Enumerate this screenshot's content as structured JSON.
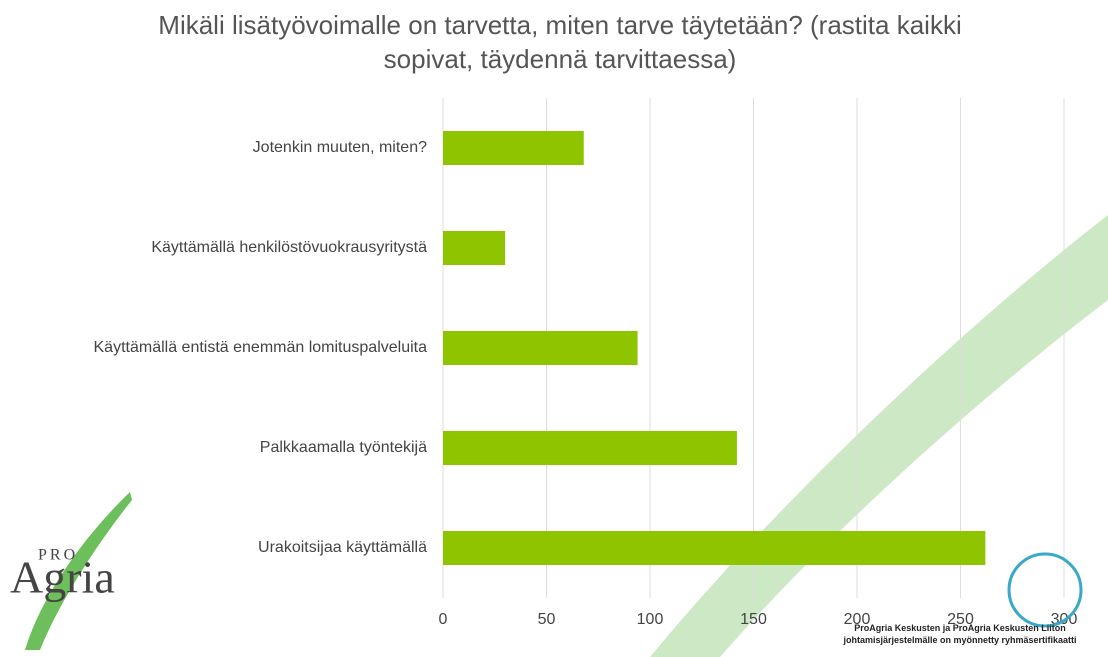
{
  "chart_data": {
    "type": "bar",
    "orientation": "horizontal",
    "title": "Mikäli lisätyövoimalle on tarvetta, miten tarve täytetään? (rastita kaikki sopivat, täydennä tarvittaessa)",
    "categories": [
      "Jotenkin muuten, miten?",
      "Käyttämällä henkilöstövuokrausyritystä",
      "Käyttämällä entistä enemmän lomituspalveluita",
      "Palkkaamalla työntekijä",
      "Urakoitsijaa käyttämällä"
    ],
    "values": [
      68,
      30,
      94,
      142,
      262
    ],
    "color": "#8fc400",
    "xlim": [
      0,
      300
    ],
    "xticks": [
      0,
      50,
      100,
      150,
      200,
      250,
      300
    ],
    "grid": true
  },
  "logo": {
    "pro": "PRO",
    "name": "Agria"
  },
  "footer_note": "ProAgria Keskusten ja ProAgria Keskusten Liiton johtamisjärjestelmälle on myönnetty ryhmäsertifikaatti"
}
